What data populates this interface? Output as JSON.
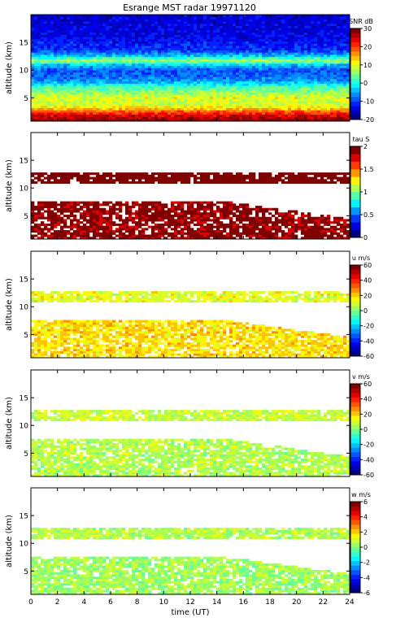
{
  "title": "Esrange MST radar 19971120",
  "chart_data": [
    {
      "type": "heatmap",
      "variable": "SNR dB",
      "ylabel": "altitude (km)",
      "xlabel": "time (UT)",
      "xlim": [
        0,
        24
      ],
      "ylim": [
        0.8,
        20
      ],
      "yticks": [
        5,
        10,
        15
      ],
      "xticks": [
        0,
        2,
        4,
        6,
        8,
        10,
        12,
        14,
        16,
        18,
        20,
        22,
        24
      ],
      "colorbar": {
        "label": "SNR dB",
        "min": -20,
        "max": 30,
        "ticks": [
          -20,
          -10,
          0,
          10,
          20,
          30
        ],
        "levels": 20,
        "palette": "jet"
      },
      "background_value": -12,
      "profile": [
        {
          "z": 1,
          "v": 28
        },
        {
          "z": 2,
          "v": 24
        },
        {
          "z": 3,
          "v": 14
        },
        {
          "z": 4,
          "v": 8
        },
        {
          "z": 5,
          "v": 10
        },
        {
          "z": 6,
          "v": 6
        },
        {
          "z": 7,
          "v": 2
        },
        {
          "z": 8,
          "v": -6
        },
        {
          "z": 9,
          "v": -8
        },
        {
          "z": 10,
          "v": -9
        },
        {
          "z": 11,
          "v": -3
        },
        {
          "z": 11.7,
          "v": 8
        },
        {
          "z": 12.5,
          "v": -3
        },
        {
          "z": 13.5,
          "v": -10
        },
        {
          "z": 16,
          "v": -14
        },
        {
          "z": 20,
          "v": -15
        }
      ]
    },
    {
      "type": "heatmap",
      "variable": "tau S",
      "ylabel": "altitude (km)",
      "xlim": [
        0,
        24
      ],
      "ylim": [
        0.8,
        20
      ],
      "yticks": [
        5,
        10,
        15
      ],
      "colorbar": {
        "label": "tau S",
        "min": 0,
        "max": 2,
        "ticks": [
          0,
          0.5,
          1,
          1.5,
          2
        ],
        "levels": 12,
        "palette": "jet"
      },
      "bands": [
        {
          "z0": 11.0,
          "z1": 12.7,
          "v": 2.0,
          "fill": 0.85
        },
        {
          "z0": 1.0,
          "z1": 7.5,
          "v": 1.9,
          "fill": 0.8,
          "taper_to": 4.5
        }
      ]
    },
    {
      "type": "heatmap",
      "variable": "u m/s",
      "ylabel": "altitude (km)",
      "xlim": [
        0,
        24
      ],
      "ylim": [
        0.8,
        20
      ],
      "yticks": [
        5,
        10,
        15
      ],
      "colorbar": {
        "label": "u m/s",
        "min": -60,
        "max": 60,
        "ticks": [
          -60,
          -40,
          -20,
          0,
          20,
          40,
          60
        ],
        "levels": 20,
        "palette": "jet"
      },
      "bands": [
        {
          "z0": 11.0,
          "z1": 12.7,
          "v": 12,
          "fill": 0.85
        },
        {
          "z0": 1.0,
          "z1": 7.5,
          "v": 18,
          "fill": 0.8,
          "taper_to": 4.5
        }
      ]
    },
    {
      "type": "heatmap",
      "variable": "v m/s",
      "ylabel": "altitude (km)",
      "xlim": [
        0,
        24
      ],
      "ylim": [
        0.8,
        20
      ],
      "yticks": [
        5,
        10,
        15
      ],
      "colorbar": {
        "label": "v m/s",
        "min": -60,
        "max": 60,
        "ticks": [
          -60,
          -40,
          -20,
          0,
          20,
          40,
          60
        ],
        "levels": 20,
        "palette": "jet"
      },
      "bands": [
        {
          "z0": 11.0,
          "z1": 12.7,
          "v": 8,
          "fill": 0.85
        },
        {
          "z0": 1.0,
          "z1": 7.5,
          "v": 6,
          "fill": 0.8,
          "taper_to": 4.5
        }
      ]
    },
    {
      "type": "heatmap",
      "variable": "w m/s",
      "ylabel": "altitude (km)",
      "xlabel": "time (UT)",
      "xlim": [
        0,
        24
      ],
      "ylim": [
        0.8,
        20
      ],
      "yticks": [
        5,
        10,
        15
      ],
      "xticks": [
        0,
        2,
        4,
        6,
        8,
        10,
        12,
        14,
        16,
        18,
        20,
        22,
        24
      ],
      "colorbar": {
        "label": "w m/s",
        "min": -6,
        "max": 6,
        "ticks": [
          -6,
          -4,
          -2,
          0,
          2,
          4,
          6
        ],
        "levels": 20,
        "palette": "jet"
      },
      "bands": [
        {
          "z0": 11.0,
          "z1": 12.7,
          "v": 0.6,
          "fill": 0.85
        },
        {
          "z0": 1.0,
          "z1": 7.5,
          "v": 0.4,
          "fill": 0.8,
          "taper_to": 4.5
        }
      ]
    }
  ]
}
